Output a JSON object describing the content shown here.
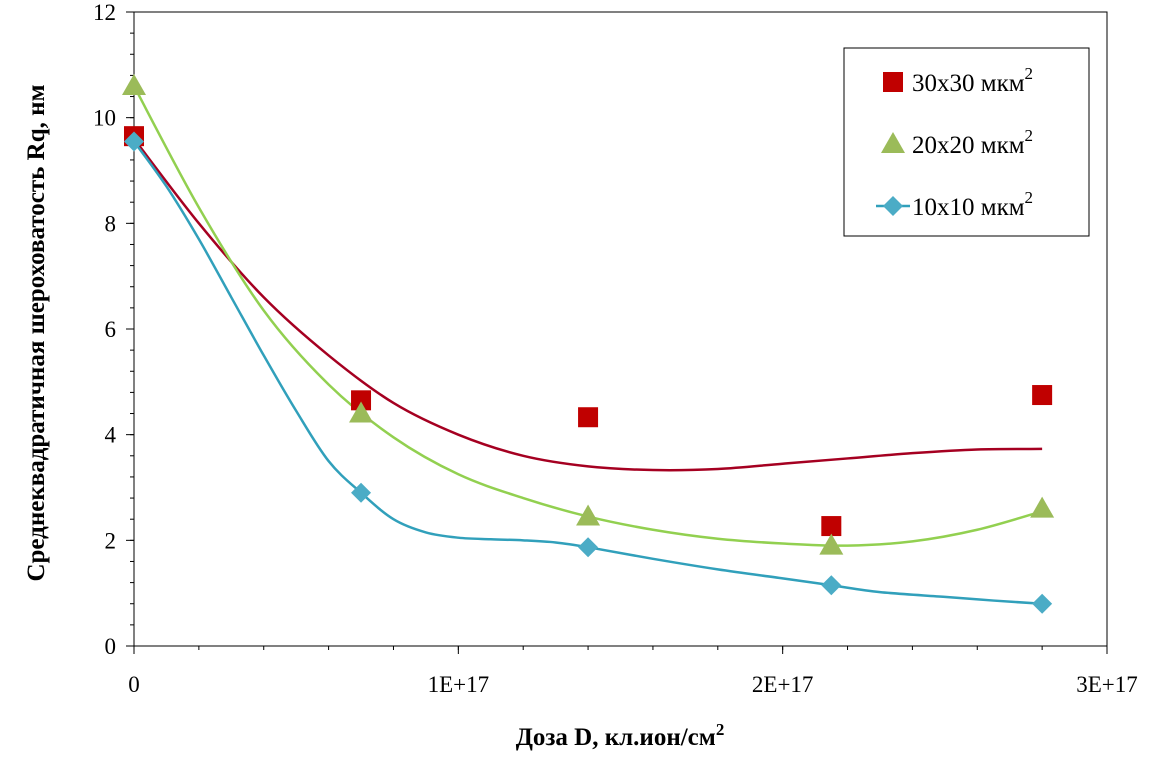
{
  "chart_data": {
    "type": "scatter",
    "xlabel": "Доза D, кл.ион/см",
    "xlabel_sup": "2",
    "ylabel": "Среднеквадратичная шероховатость Rq, нм",
    "xlim": [
      0,
      3e+17
    ],
    "ylim": [
      0,
      12
    ],
    "x_ticks": [
      0,
      1e+17,
      2e+17,
      3e+17
    ],
    "x_tick_labels": [
      "0",
      "1E+17",
      "2E+17",
      "3E+17"
    ],
    "y_ticks": [
      0,
      2,
      4,
      6,
      8,
      10,
      12
    ],
    "y_tick_labels": [
      "0",
      "2",
      "4",
      "6",
      "8",
      "10",
      "12"
    ],
    "grid": false,
    "legend_position": "top-right",
    "trendlines": "smooth",
    "series": [
      {
        "name": "30x30 мкм",
        "name_sup": "2",
        "marker": "square",
        "color": "#c00000",
        "x": [
          0,
          7e+16,
          1.4e+17,
          2.15e+17,
          2.8e+17
        ],
        "y": [
          9.65,
          4.65,
          4.33,
          2.27,
          4.75
        ],
        "trend_x": [
          0,
          2e+16,
          4e+16,
          6e+16,
          8e+16,
          1e+17,
          1.2e+17,
          1.4e+17,
          1.6e+17,
          1.8e+17,
          2e+17,
          2.2e+17,
          2.4e+17,
          2.6e+17,
          2.8e+17
        ],
        "trend_y": [
          9.6,
          8.0,
          6.6,
          5.5,
          4.6,
          4.0,
          3.6,
          3.4,
          3.33,
          3.35,
          3.45,
          3.55,
          3.65,
          3.72,
          3.73
        ]
      },
      {
        "name": "20x20 мкм",
        "name_sup": "2",
        "marker": "triangle",
        "color": "#9bbb59",
        "x": [
          0,
          7e+16,
          1.4e+17,
          2.15e+17,
          2.8e+17
        ],
        "y": [
          10.6,
          4.4,
          2.45,
          1.9,
          2.6
        ],
        "trend_x": [
          0,
          2e+16,
          4e+16,
          6e+16,
          8e+16,
          1e+17,
          1.2e+17,
          1.4e+17,
          1.6e+17,
          1.8e+17,
          2e+17,
          2.2e+17,
          2.4e+17,
          2.6e+17,
          2.8e+17
        ],
        "trend_y": [
          10.6,
          8.3,
          6.35,
          4.95,
          3.95,
          3.25,
          2.8,
          2.45,
          2.2,
          2.03,
          1.94,
          1.9,
          1.98,
          2.2,
          2.55
        ]
      },
      {
        "name": "10x10 мкм",
        "name_sup": "2",
        "marker": "diamond",
        "color": "#4bacc6",
        "x": [
          0,
          7e+16,
          1.4e+17,
          2.15e+17,
          2.8e+17
        ],
        "y": [
          9.55,
          2.9,
          1.87,
          1.15,
          0.8
        ],
        "trend_x": [
          0,
          1e+16,
          2e+16,
          3e+16,
          4e+16,
          5e+16,
          6e+16,
          7e+16,
          8e+16,
          9e+16,
          1e+17,
          1.1e+17,
          1.2e+17,
          1.3e+17,
          1.4e+17,
          1.6e+17,
          1.8e+17,
          2e+17,
          2.15e+17,
          2.3e+17,
          2.5e+17,
          2.65e+17,
          2.8e+17
        ],
        "trend_y": [
          9.55,
          8.7,
          7.7,
          6.6,
          5.5,
          4.45,
          3.5,
          2.9,
          2.4,
          2.15,
          2.05,
          2.02,
          2.0,
          1.96,
          1.87,
          1.65,
          1.45,
          1.28,
          1.15,
          1.02,
          0.93,
          0.86,
          0.8
        ]
      }
    ]
  }
}
